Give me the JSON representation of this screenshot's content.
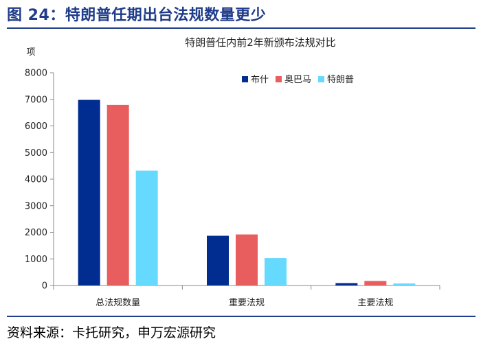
{
  "figure": {
    "title": "图 24：特朗普任期出台法规数量更少",
    "source": "资料来源：卡托研究，申万宏源研究"
  },
  "chart_data": {
    "type": "bar",
    "title": "特朗普任内前2年新颁布法规对比",
    "ylabel": "项",
    "xlabel": "",
    "ylim": [
      0,
      8000
    ],
    "yticks": [
      0,
      1000,
      2000,
      3000,
      4000,
      5000,
      6000,
      7000,
      8000
    ],
    "grid": false,
    "legend_position": "top-right",
    "categories": [
      "总法规数量",
      "重要法规",
      "主要法规"
    ],
    "series": [
      {
        "name": "布什",
        "color": "#002d8f",
        "values": [
          6980,
          1870,
          90
        ]
      },
      {
        "name": "奥巴马",
        "color": "#e85d5d",
        "values": [
          6790,
          1920,
          170
        ]
      },
      {
        "name": "特朗普",
        "color": "#66d9ff",
        "values": [
          4320,
          1030,
          75
        ]
      }
    ]
  }
}
